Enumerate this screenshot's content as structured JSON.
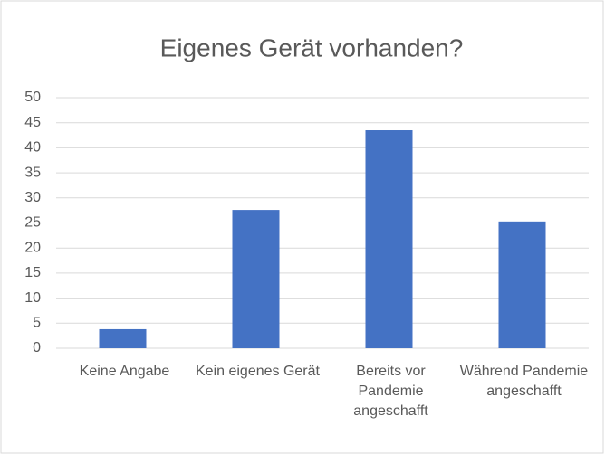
{
  "chart_data": {
    "type": "bar",
    "title": "Eigenes Gerät vorhanden?",
    "categories": [
      "Keine Angabe",
      "Kein eigenes Gerät",
      "Bereits vor Pandemie angeschafft",
      "Während Pandemie angeschafft"
    ],
    "values": [
      3.8,
      27.6,
      43.5,
      25.3
    ],
    "color": "#4472c4",
    "ylim": [
      0,
      50
    ],
    "yticks": [
      0,
      5,
      10,
      15,
      20,
      25,
      30,
      35,
      40,
      45,
      50
    ],
    "grid": true
  }
}
